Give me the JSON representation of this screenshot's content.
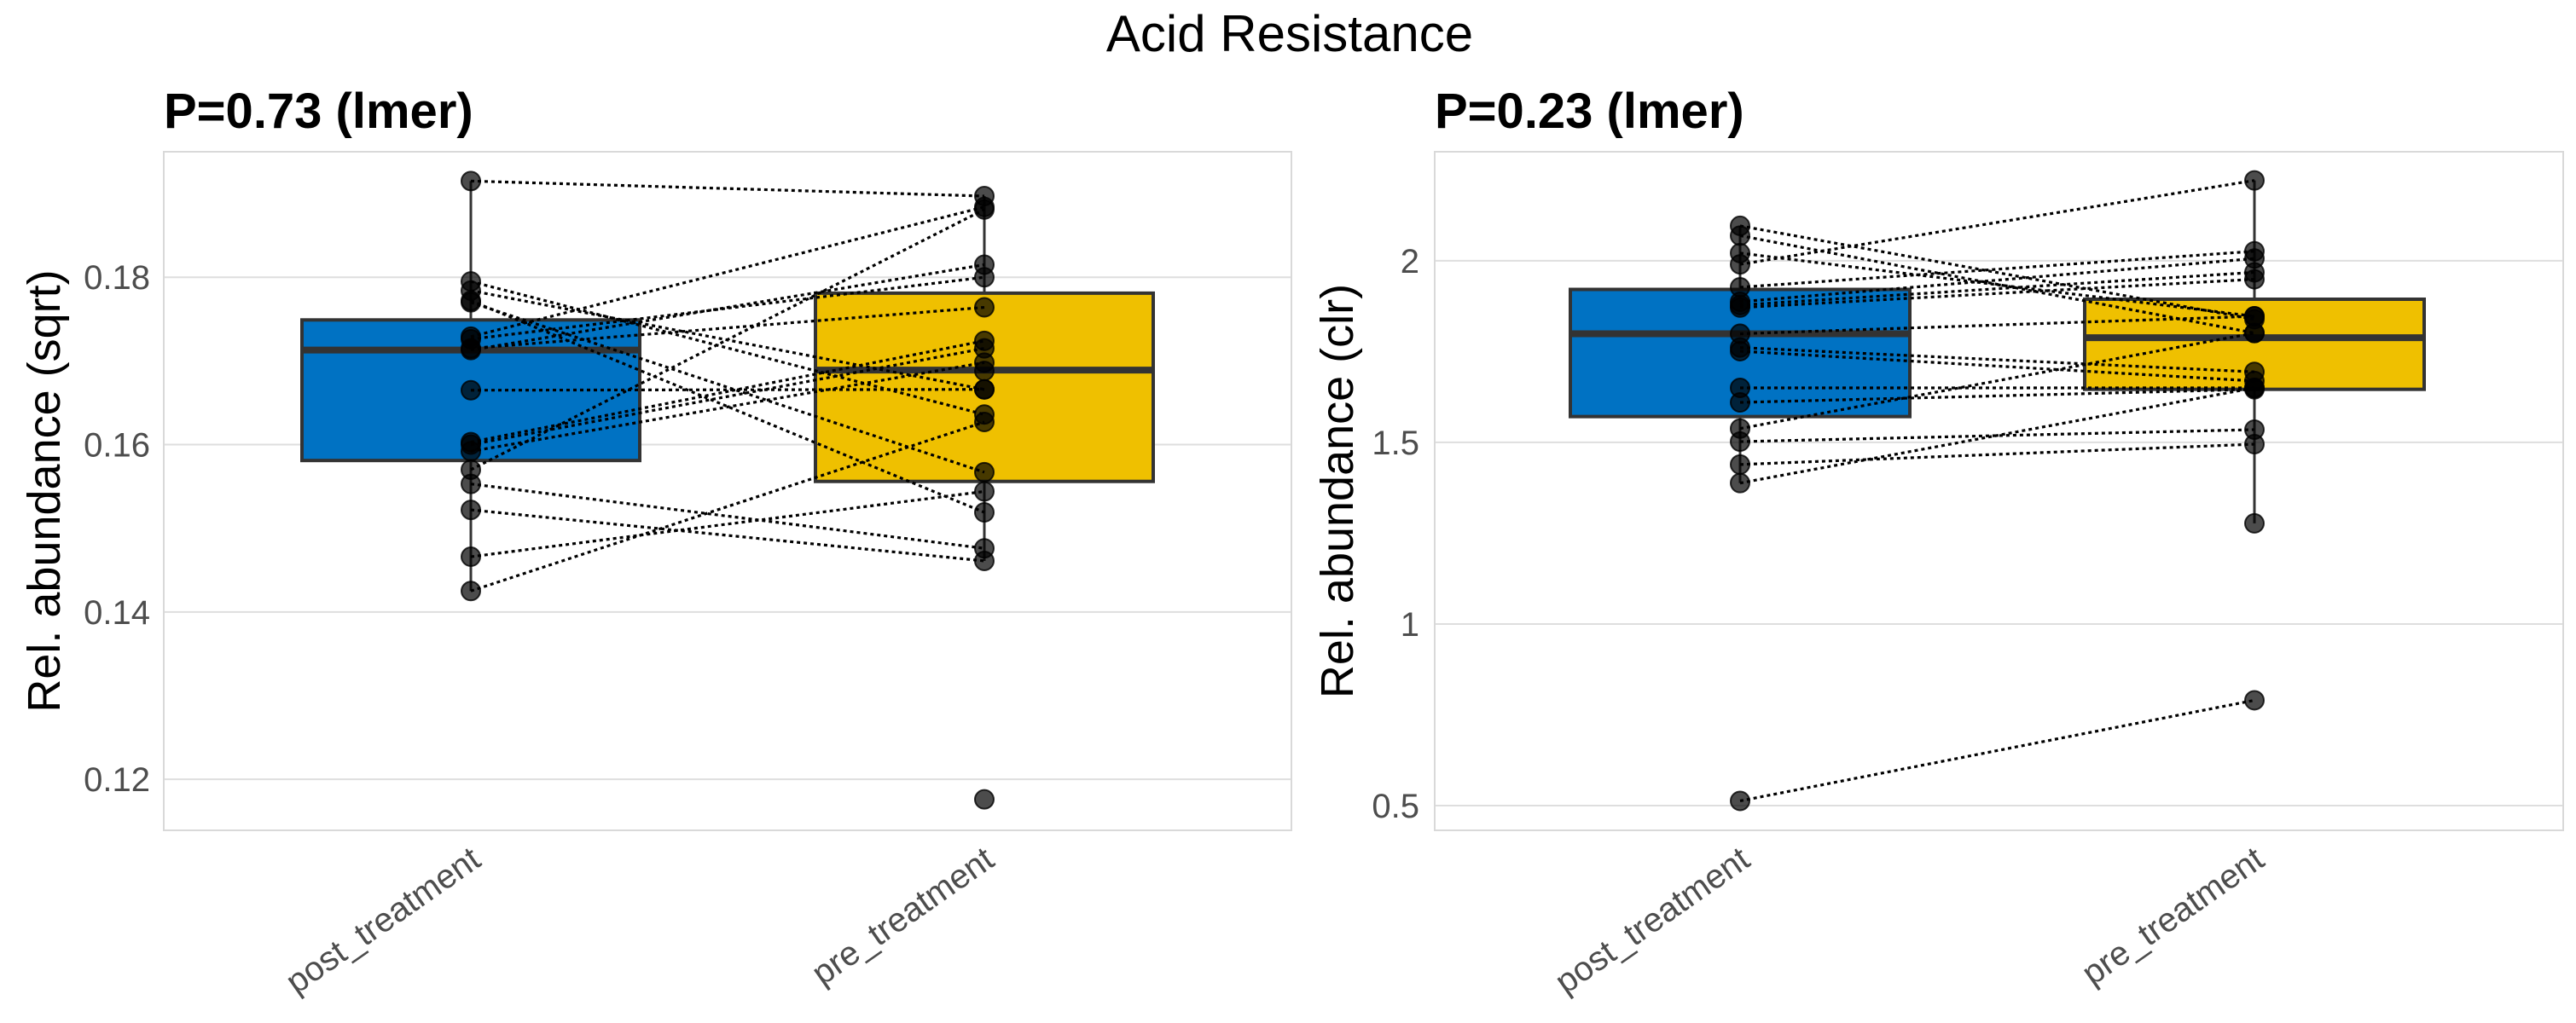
{
  "chart_data": {
    "title": "Acid Resistance",
    "type": "box",
    "colors": {
      "post_treatment": "#0072C3",
      "pre_treatment": "#EFC000",
      "point": "#000000",
      "box_outline": "#333333"
    },
    "panels": [
      {
        "id": "sqrt",
        "subtitle": "P=0.73 (lmer)",
        "xlabel": "",
        "ylabel": "Rel. abundance (sqrt)",
        "categories": [
          "post_treatment",
          "pre_treatment"
        ],
        "ylim": [
          0.1139,
          0.195
        ],
        "yticks": [
          0.12,
          0.14,
          0.16,
          0.18
        ],
        "ytick_labels": [
          "0.12",
          "0.14",
          "0.16",
          "0.18"
        ],
        "grid": true,
        "boxes": [
          {
            "category": "post_treatment",
            "q1": 0.1581,
            "median": 0.1713,
            "q3": 0.1749,
            "whisker_low": 0.1425,
            "whisker_high": 0.1915
          },
          {
            "category": "pre_treatment",
            "q1": 0.1556,
            "median": 0.1689,
            "q3": 0.1781,
            "whisker_low": 0.1461,
            "whisker_high": 0.1897
          }
        ],
        "pairs": [
          [
            0.1915,
            0.1897
          ],
          [
            0.1795,
            0.1636
          ],
          [
            0.1784,
            0.1666
          ],
          [
            0.1772,
            0.1519
          ],
          [
            0.177,
            0.1567
          ],
          [
            0.1729,
            0.1884
          ],
          [
            0.1726,
            0.18
          ],
          [
            0.1715,
            0.1764
          ],
          [
            0.1713,
            0.1815
          ],
          [
            0.1665,
            0.1666
          ],
          [
            0.1603,
            0.1724
          ],
          [
            0.16,
            0.1715
          ],
          [
            0.1592,
            0.1698
          ],
          [
            0.157,
            0.1881
          ],
          [
            0.1553,
            0.1476
          ],
          [
            0.1522,
            0.1461
          ],
          [
            0.1466,
            0.1544
          ],
          [
            0.1425,
            0.1627
          ]
        ],
        "unpaired": [
          {
            "category": "pre_treatment",
            "value": 0.1176
          },
          {
            "category": "pre_treatment",
            "value": 0.1688
          }
        ]
      },
      {
        "id": "clr",
        "subtitle": "P=0.23 (lmer)",
        "xlabel": "",
        "ylabel": "Rel. abundance (clr)",
        "categories": [
          "post_treatment",
          "pre_treatment"
        ],
        "ylim": [
          0.432,
          2.3
        ],
        "yticks": [
          0.5,
          1,
          1.5,
          2
        ],
        "ytick_labels": [
          "0.5",
          "1",
          "1.5",
          "2"
        ],
        "grid": true,
        "boxes": [
          {
            "category": "post_treatment",
            "q1": 1.571,
            "median": 1.799,
            "q3": 1.921,
            "whisker_low": 1.388,
            "whisker_high": 2.096
          },
          {
            "category": "pre_treatment",
            "q1": 1.646,
            "median": 1.788,
            "q3": 1.894,
            "whisker_low": 1.277,
            "whisker_high": 2.221
          }
        ],
        "pairs": [
          [
            2.096,
            1.839
          ],
          [
            2.069,
            1.801
          ],
          [
            2.021,
            1.847
          ],
          [
            1.99,
            2.221
          ],
          [
            1.927,
            2.026
          ],
          [
            1.887,
            2.006
          ],
          [
            1.878,
            1.968
          ],
          [
            1.871,
            1.949
          ],
          [
            1.799,
            1.847
          ],
          [
            1.761,
            1.694
          ],
          [
            1.751,
            1.669
          ],
          [
            1.65,
            1.65
          ],
          [
            1.61,
            1.646
          ],
          [
            1.538,
            1.801
          ],
          [
            1.502,
            1.535
          ],
          [
            1.439,
            1.495
          ],
          [
            1.388,
            1.65
          ],
          [
            0.513,
            0.79
          ]
        ],
        "unpaired": [
          {
            "category": "pre_treatment",
            "value": 1.277
          }
        ]
      }
    ]
  }
}
